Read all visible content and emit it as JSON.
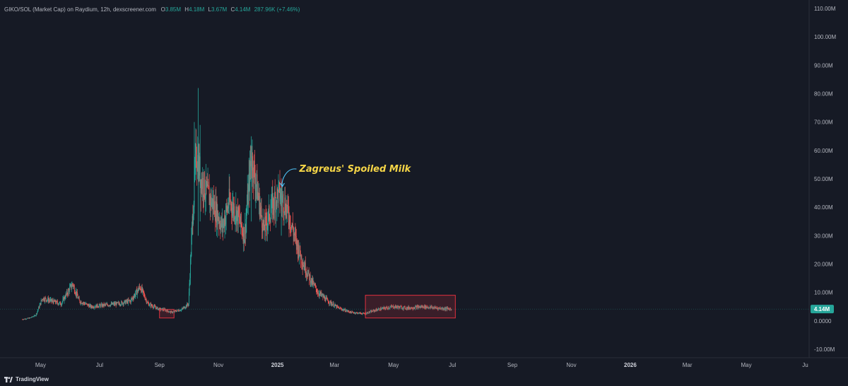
{
  "header": {
    "symbol": "GIKO/SOL (Market Cap) on Raydium, 12h, dexscreener.com",
    "open_label": "O",
    "open": "3.85M",
    "high_label": "H",
    "high": "4.18M",
    "low_label": "L",
    "low": "3.67M",
    "close_label": "C",
    "close": "4.14M",
    "change": "287.96K (+7.46%)"
  },
  "branding": {
    "name": "TradingView"
  },
  "colors": {
    "background": "#161a25",
    "up": "#26a69a",
    "down": "#ef5350",
    "annotation": "#f5d547",
    "arrow": "#4fc3f7",
    "box": "#e0313e"
  },
  "chart_data": {
    "type": "candlestick",
    "interval": "12h",
    "y_unit": "Market Cap (USD)",
    "ylim": [
      -13000000,
      113000000
    ],
    "y_ticks": [
      {
        "value": 110000000,
        "label": "110.00M"
      },
      {
        "value": 100000000,
        "label": "100.00M"
      },
      {
        "value": 90000000,
        "label": "90.00M"
      },
      {
        "value": 80000000,
        "label": "80.00M"
      },
      {
        "value": 70000000,
        "label": "70.00M"
      },
      {
        "value": 60000000,
        "label": "60.00M"
      },
      {
        "value": 50000000,
        "label": "50.00M"
      },
      {
        "value": 40000000,
        "label": "40.00M"
      },
      {
        "value": 30000000,
        "label": "30.00M"
      },
      {
        "value": 20000000,
        "label": "20.00M"
      },
      {
        "value": 10000000,
        "label": "10.00M"
      },
      {
        "value": 0,
        "label": "0.0000"
      },
      {
        "value": -10000000,
        "label": "-10.00M"
      }
    ],
    "xlim": [
      "2024-03-20",
      "2026-07-05"
    ],
    "x_ticks": [
      {
        "date": "2024-05-01",
        "label": "May"
      },
      {
        "date": "2024-07-01",
        "label": "Jul"
      },
      {
        "date": "2024-09-01",
        "label": "Sep"
      },
      {
        "date": "2024-11-01",
        "label": "Nov"
      },
      {
        "date": "2025-01-01",
        "label": "2025",
        "bold": true
      },
      {
        "date": "2025-03-01",
        "label": "Mar"
      },
      {
        "date": "2025-05-01",
        "label": "May"
      },
      {
        "date": "2025-07-01",
        "label": "Jul"
      },
      {
        "date": "2025-09-01",
        "label": "Sep"
      },
      {
        "date": "2025-11-01",
        "label": "Nov"
      },
      {
        "date": "2026-01-01",
        "label": "2026",
        "bold": true
      },
      {
        "date": "2026-03-01",
        "label": "Mar"
      },
      {
        "date": "2026-05-01",
        "label": "May"
      },
      {
        "date": "2026-07-01",
        "label": "Ju"
      }
    ],
    "trend": [
      [
        "2024-04-12",
        0.5
      ],
      [
        "2024-04-20",
        1.0
      ],
      [
        "2024-04-26",
        2.0
      ],
      [
        "2024-05-03",
        8
      ],
      [
        "2024-05-12",
        7
      ],
      [
        "2024-05-22",
        6
      ],
      [
        "2024-06-03",
        13
      ],
      [
        "2024-06-10",
        7
      ],
      [
        "2024-06-22",
        5
      ],
      [
        "2024-07-05",
        5.5
      ],
      [
        "2024-07-20",
        6
      ],
      [
        "2024-08-02",
        7
      ],
      [
        "2024-08-12",
        12
      ],
      [
        "2024-08-20",
        6
      ],
      [
        "2024-09-01",
        4
      ],
      [
        "2024-09-05",
        4
      ],
      [
        "2024-09-13",
        3
      ],
      [
        "2024-09-24",
        4
      ],
      [
        "2024-10-01",
        6
      ],
      [
        "2024-10-05",
        35
      ],
      [
        "2024-10-09",
        60
      ],
      [
        "2024-10-14",
        50
      ],
      [
        "2024-10-20",
        45
      ],
      [
        "2024-10-28",
        40
      ],
      [
        "2024-11-05",
        33
      ],
      [
        "2024-11-12",
        42
      ],
      [
        "2024-11-20",
        38
      ],
      [
        "2024-11-28",
        30
      ],
      [
        "2024-12-05",
        58
      ],
      [
        "2024-12-10",
        48
      ],
      [
        "2024-12-18",
        32
      ],
      [
        "2024-12-26",
        40
      ],
      [
        "2025-01-02",
        45
      ],
      [
        "2025-01-08",
        42
      ],
      [
        "2025-01-14",
        36
      ],
      [
        "2025-01-20",
        28
      ],
      [
        "2025-01-28",
        20
      ],
      [
        "2025-02-05",
        14
      ],
      [
        "2025-02-12",
        10
      ],
      [
        "2025-02-22",
        7
      ],
      [
        "2025-03-05",
        4.5
      ],
      [
        "2025-03-18",
        3
      ],
      [
        "2025-04-01",
        2.5
      ],
      [
        "2025-04-15",
        4
      ],
      [
        "2025-05-01",
        5
      ],
      [
        "2025-05-15",
        4.5
      ],
      [
        "2025-06-01",
        5
      ],
      [
        "2025-06-15",
        4.5
      ],
      [
        "2025-06-30",
        4.14
      ]
    ],
    "spikes": [
      {
        "date": "2024-10-11",
        "high": 82,
        "low": 30
      },
      {
        "date": "2024-10-07",
        "high": 70,
        "low": 40
      },
      {
        "date": "2024-10-13",
        "high": 69,
        "low": 35
      },
      {
        "date": "2024-12-05",
        "high": 65,
        "low": 35
      },
      {
        "date": "2025-01-05",
        "high": 47,
        "low": 30
      }
    ],
    "last_price": {
      "value": 4140000,
      "label": "4.14M"
    },
    "annotations": [
      {
        "text": "Zagreus' Spoiled Milk",
        "date": "2025-01-06",
        "value": 47000000
      },
      {
        "type": "box",
        "from": "2024-09-01",
        "to": "2024-09-16",
        "low": 1000000,
        "high": 4000000
      },
      {
        "type": "box",
        "from": "2025-04-02",
        "to": "2025-07-04",
        "low": 1000000,
        "high": 9000000
      }
    ]
  }
}
